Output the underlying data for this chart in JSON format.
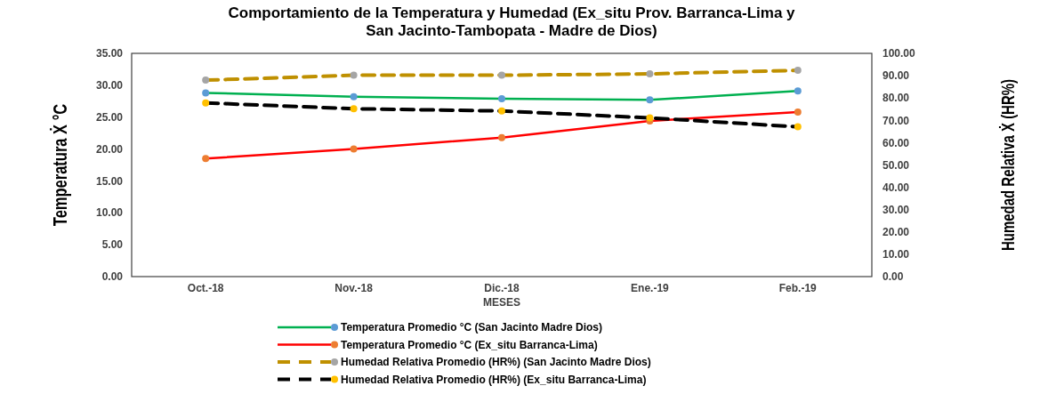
{
  "chart_data": {
    "type": "line",
    "title": "Comportamiento de la Temperatura y Humedad (Ex_situ Prov. Barranca-Lima y San Jacinto-Tambopata - Madre de Dios)",
    "xlabel": "MESES",
    "ylabel": "Temperatura Ẋ °C",
    "y2label": "Humedad Relativa  Ẋ (HR%)",
    "categories": [
      "Oct.-18",
      "Nov.-18",
      "Dic.-18",
      "Ene.-19",
      "Feb.-19"
    ],
    "series": [
      {
        "name": "Temperatura Promedio °C (San Jacinto Madre Dios)",
        "color": "#00b050",
        "colors": [
          "#5b9bd5",
          "#5b9bd5",
          "#5b9bd5",
          "#5b9bd5",
          "#5b9bd5"
        ],
        "line_style": "solid",
        "values": [
          28.8,
          28.2,
          27.9,
          27.7,
          29.1
        ]
      },
      {
        "name": "Temperatura Promedio  °C (Ex_situ Barranca-Lima)",
        "color": "#ff0000",
        "colors": [
          "#ed7d31",
          "#ed7d31",
          "#ed7d31",
          "#ed7d31",
          "#ed7d31"
        ],
        "line_style": "solid",
        "values": [
          18.5,
          20.0,
          21.8,
          24.4,
          25.8
        ]
      },
      {
        "name": "Humedad Relativa Promedio (HR%) (San Jacinto Madre Dios)",
        "color": "#bf9000",
        "colors": [
          "#a5a5a5",
          "#a5a5a5",
          "#a5a5a5",
          "#a5a5a5",
          "#a5a5a5"
        ],
        "line_style": "dashed",
        "axis": "y2",
        "values": [
          88.0,
          90.2,
          90.2,
          90.8,
          92.4
        ]
      },
      {
        "name": "Humedad Relativa Promedio (HR%) (Ex_situ Barranca-Lima)",
        "color": "#000000",
        "colors": [
          "#ffc000",
          "#ffc000",
          "#ffc000",
          "#ffc000",
          "#ffc000"
        ],
        "line_style": "dashed",
        "axis": "y2",
        "values": [
          77.8,
          75.2,
          74.2,
          71.1,
          67.1
        ]
      }
    ],
    "ylim": [
      0,
      35
    ],
    "yticks": [
      {
        "value": 0,
        "label": "0.00"
      },
      {
        "value": 5,
        "label": "5.00"
      },
      {
        "value": 10,
        "label": "10.00"
      },
      {
        "value": 15,
        "label": "15.00"
      },
      {
        "value": 20,
        "label": "20.00"
      },
      {
        "value": 25,
        "label": "25.00"
      },
      {
        "value": 30,
        "label": "30.00"
      },
      {
        "value": 35,
        "label": "35.00"
      }
    ],
    "y2lim": [
      0,
      100
    ],
    "y2ticks": [
      {
        "value": 0,
        "label": "0.00"
      },
      {
        "value": 10,
        "label": "10.00"
      },
      {
        "value": 20,
        "label": "20.00"
      },
      {
        "value": 30,
        "label": "30.00"
      },
      {
        "value": 40,
        "label": "40.00"
      },
      {
        "value": 50,
        "label": "50.00"
      },
      {
        "value": 60,
        "label": "60.00"
      },
      {
        "value": 70,
        "label": "70.00"
      },
      {
        "value": 80,
        "label": "80.00"
      },
      {
        "value": 90,
        "label": "90.00"
      },
      {
        "value": 100,
        "label": "100.00"
      }
    ],
    "marker": "circle",
    "legend": "bottom",
    "grid": false
  }
}
